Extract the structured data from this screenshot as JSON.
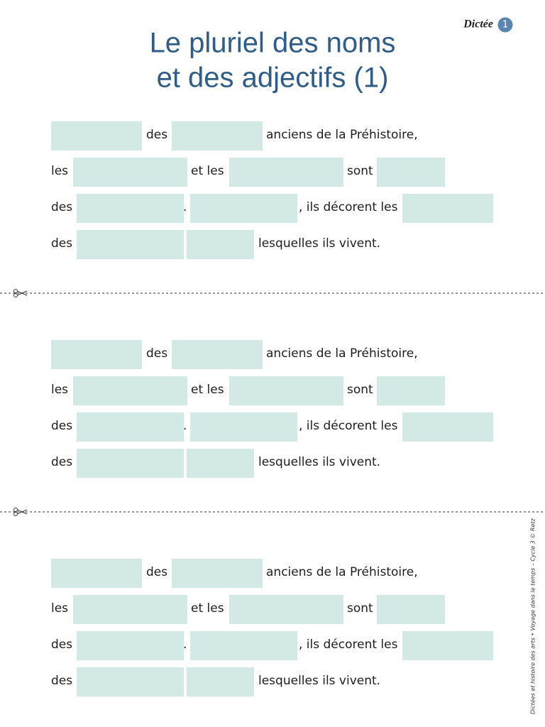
{
  "header": {
    "label": "Dictée",
    "number": "1",
    "title": [
      "Le pluriel des noms",
      "et des adjectifs (1)"
    ]
  },
  "sections": [
    {
      "lines": [
        [
          "des",
          "anciens de la Préhistoire,"
        ],
        [
          "les",
          "et les",
          "sont"
        ],
        [
          "des",
          ".",
          ", ils décorent les"
        ],
        [
          "des",
          "lesquelles ils vivent."
        ]
      ]
    },
    {
      "lines": [
        [
          "des",
          "anciens de la Préhistoire,"
        ],
        [
          "les",
          "et les",
          "sont"
        ],
        [
          "des",
          ".",
          ", ils décorent les"
        ],
        [
          "des",
          "lesquelles ils vivent."
        ]
      ]
    },
    {
      "lines": [
        [
          "des",
          "anciens de la Préhistoire,"
        ],
        [
          "les",
          "et les",
          "sont"
        ],
        [
          "des",
          ".",
          ", ils décorent les"
        ],
        [
          "des",
          "lesquelles ils vivent."
        ]
      ]
    }
  ],
  "footer": {
    "credit": "Dictées et histoire des arts • Voyage dans le temps – Cycle 3 © Retz"
  }
}
